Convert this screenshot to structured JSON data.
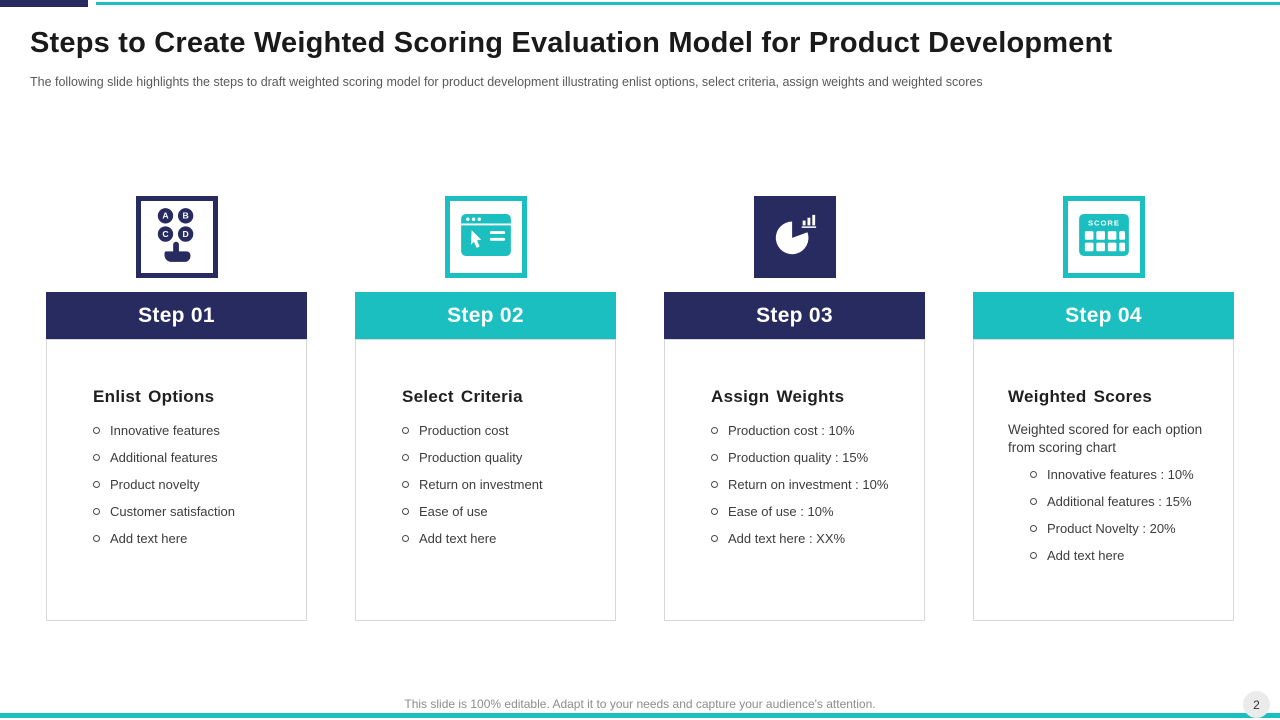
{
  "slide": {
    "title": "Steps to Create Weighted Scoring Evaluation Model for Product Development",
    "subtitle": "The following slide highlights the steps to draft weighted scoring model for product development illustrating enlist options, select criteria, assign weights and weighted scores",
    "footer": "This slide is 100% editable. Adapt it to your needs and capture your audience's attention.",
    "page_number": "2"
  },
  "colors": {
    "navy": "#272B60",
    "teal": "#1CBFBF"
  },
  "steps": [
    {
      "label": "Step 01",
      "heading": "Enlist Options",
      "icon": "options-hand-icon",
      "theme": "navy",
      "items": [
        "Innovative features",
        "Additional features",
        "Product novelty",
        "Customer satisfaction",
        "Add text here"
      ]
    },
    {
      "label": "Step 02",
      "heading": "Select Criteria",
      "icon": "browser-click-icon",
      "theme": "teal",
      "items": [
        "Production cost",
        "Production quality",
        "Return on investment",
        "Ease of use",
        "Add text here"
      ]
    },
    {
      "label": "Step 03",
      "heading": "Assign Weights",
      "icon": "pie-chart-icon",
      "theme": "navy",
      "items": [
        "Production cost : 10%",
        "Production quality : 15%",
        "Return on investment : 10%",
        "Ease of use : 10%",
        "Add text here : XX%"
      ]
    },
    {
      "label": "Step 04",
      "heading": "Weighted Scores",
      "icon": "scoreboard-icon",
      "theme": "teal",
      "intro": "Weighted scored for each option from  scoring chart",
      "items": [
        "Innovative features : 10%",
        "Additional features : 15%",
        "Product Novelty : 20%",
        "Add text here"
      ]
    }
  ]
}
